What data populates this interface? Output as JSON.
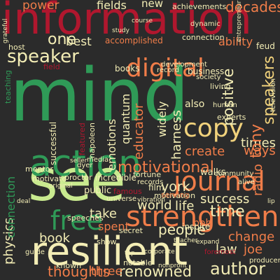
{
  "word_cloud": {
    "background": "#2b2b2b",
    "words": [
      {
        "text": "information",
        "color": "#b0172e"
      },
      {
        "text": "mind",
        "color": "#2f9a57"
      },
      {
        "text": "see",
        "color": "#c9ea8f"
      },
      {
        "text": "resilient",
        "color": "#f3edb5"
      },
      {
        "text": "action",
        "color": "#2f9a57"
      },
      {
        "text": "strengthen",
        "color": "#f07d49"
      },
      {
        "text": "digital",
        "color": "#f07d49"
      },
      {
        "text": "journal",
        "color": "#f07d49"
      },
      {
        "text": "free",
        "color": "#2f9a57"
      },
      {
        "text": "copy",
        "color": "#f1d27c"
      },
      {
        "text": "motivational",
        "color": "#f07d49"
      },
      {
        "text": "speaker",
        "color": "#f3edb5"
      },
      {
        "text": "author",
        "color": "#f3edb5"
      },
      {
        "text": "renowned",
        "color": "#f3edb5"
      },
      {
        "text": "power",
        "color": "#f07d49"
      },
      {
        "text": "fields",
        "color": "#f3edb5"
      },
      {
        "text": "new",
        "color": "#f3edb5"
      },
      {
        "text": "decades",
        "color": "#f07d49"
      },
      {
        "text": "one",
        "color": "#f3edb5"
      },
      {
        "text": "best",
        "color": "#f3edb5"
      },
      {
        "text": "accomplished",
        "color": "#f07d49"
      },
      {
        "text": "ability",
        "color": "#f07d49"
      },
      {
        "text": "emotions",
        "color": "#f3edb5"
      },
      {
        "text": "quantum",
        "color": "#f3edb5"
      },
      {
        "text": "educator",
        "color": "#f07d49"
      },
      {
        "text": "widely",
        "color": "#f3edb5"
      },
      {
        "text": "harness",
        "color": "#f3edb5"
      },
      {
        "text": "positive",
        "color": "#f3edb5"
      },
      {
        "text": "speakers",
        "color": "#f1d27c"
      },
      {
        "text": "tony",
        "color": "#f07d49"
      },
      {
        "text": "times",
        "color": "#f3edb5"
      },
      {
        "text": "ways",
        "color": "#f07d49"
      },
      {
        "text": "radio",
        "color": "#f07d49"
      },
      {
        "text": "create",
        "color": "#f07d49"
      },
      {
        "text": "york",
        "color": "#f3edb5"
      },
      {
        "text": "world",
        "color": "#f3edb5"
      },
      {
        "text": "life",
        "color": "#f3edb5"
      },
      {
        "text": "success",
        "color": "#f3edb5"
      },
      {
        "text": "physics",
        "color": "#f3edb5"
      },
      {
        "text": "take",
        "color": "#f3edb5"
      },
      {
        "text": "spent",
        "color": "#f07d49"
      },
      {
        "text": "book",
        "color": "#f3edb5"
      },
      {
        "text": "people",
        "color": "#f3edb5"
      },
      {
        "text": "bob",
        "color": "#f07d49"
      },
      {
        "text": "change",
        "color": "#f07d49"
      },
      {
        "text": "time",
        "color": "#f3edb5"
      },
      {
        "text": "law",
        "color": "#f3edb5"
      },
      {
        "text": "joe",
        "color": "#f07d49"
      },
      {
        "text": "thoughts",
        "color": "#f07d49"
      },
      {
        "text": "three",
        "color": "#f07d49"
      },
      {
        "text": "connection",
        "color": "#2f9a57"
      },
      {
        "text": "achievements",
        "color": "#f3edb5"
      },
      {
        "text": "also",
        "color": "#f3edb5"
      },
      {
        "text": "experts",
        "color": "#f3edb5"
      },
      {
        "text": "speeches",
        "color": "#f3edb5"
      },
      {
        "text": "public",
        "color": "#f3edb5"
      },
      {
        "text": "incredible",
        "color": "#f3edb5"
      },
      {
        "text": "motivation",
        "color": "#f3edb5"
      },
      {
        "text": "business",
        "color": "#f3edb5"
      },
      {
        "text": "lecture",
        "color": "#f3edb5"
      },
      {
        "text": "dynamic",
        "color": "#f3edb5"
      },
      {
        "text": "famous",
        "color": "#b0172e"
      },
      {
        "text": "film",
        "color": "#f3edb5"
      },
      {
        "text": "walks",
        "color": "#f3edb5"
      },
      {
        "text": "inspire",
        "color": "#f3edb5"
      },
      {
        "text": "serving",
        "color": "#f07d49"
      },
      {
        "text": "mentor",
        "color": "#f3edb5"
      },
      {
        "text": "successful",
        "color": "#f3edb5"
      },
      {
        "text": "napoleon",
        "color": "#f3edb5"
      },
      {
        "text": "featured",
        "color": "#b0172e"
      },
      {
        "text": "known",
        "color": "#f3edb5"
      },
      {
        "text": "secret",
        "color": "#f3edb5"
      },
      {
        "text": "notable",
        "color": "#f3edb5"
      },
      {
        "text": "foremost",
        "color": "#b0172e"
      },
      {
        "text": "producer",
        "color": "#f3edb5"
      },
      {
        "text": "guide",
        "color": "#f3edb5"
      },
      {
        "text": "show",
        "color": "#f3edb5"
      },
      {
        "text": "fortune",
        "color": "#f3edb5"
      },
      {
        "text": "proctor",
        "color": "#f3edb5"
      },
      {
        "text": "motivate",
        "color": "#f3edb5"
      },
      {
        "text": "universe",
        "color": "#f3edb5"
      },
      {
        "text": "records",
        "color": "#f3edb5"
      },
      {
        "text": "dyer",
        "color": "#f3edb5"
      },
      {
        "text": "media",
        "color": "#f3edb5"
      },
      {
        "text": "human",
        "color": "#f3edb5"
      },
      {
        "text": "living",
        "color": "#f3edb5"
      },
      {
        "text": "society",
        "color": "#f3edb5"
      },
      {
        "text": "feud",
        "color": "#f3edb5"
      },
      {
        "text": "books",
        "color": "#f3edb5"
      },
      {
        "text": "record",
        "color": "#f3edb5"
      },
      {
        "text": "field",
        "color": "#b0172e"
      },
      {
        "text": "host",
        "color": "#f3edb5"
      },
      {
        "text": "development",
        "color": "#f3edb5"
      },
      {
        "text": "study",
        "color": "#f3edb5"
      },
      {
        "text": "teaching",
        "color": "#2f9a57"
      },
      {
        "text": "corporate",
        "color": "#f3edb5"
      },
      {
        "text": "vibration",
        "color": "#f3edb5"
      },
      {
        "text": "community",
        "color": "#f3edb5"
      },
      {
        "text": "alive",
        "color": "#f3edb5"
      },
      {
        "text": "television",
        "color": "#f3edb5"
      },
      {
        "text": "course",
        "color": "#f3edb5"
      },
      {
        "text": "entrepreneur",
        "color": "#f3edb5"
      },
      {
        "text": "seller",
        "color": "#f3edb5"
      },
      {
        "text": "teacher",
        "color": "#f3edb5"
      },
      {
        "text": "nonprofit",
        "color": "#f3edb5"
      },
      {
        "text": "expand",
        "color": "#f3edb5"
      },
      {
        "text": "top",
        "color": "#f3edb5"
      },
      {
        "text": "lip",
        "color": "#f3edb5"
      },
      {
        "text": "grateful",
        "color": "#f3edb5"
      },
      {
        "text": "original",
        "color": "#f3edb5"
      },
      {
        "text": "deal",
        "color": "#f3edb5"
      }
    ]
  }
}
